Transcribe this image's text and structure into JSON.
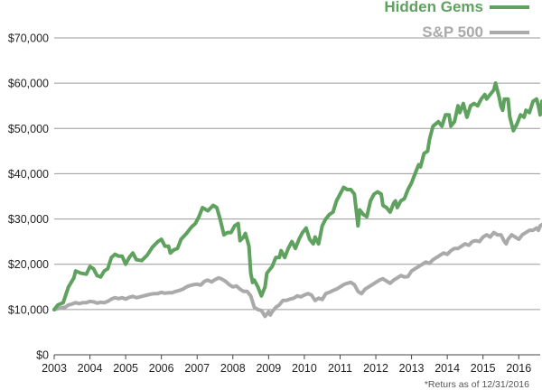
{
  "chart_data": {
    "type": "line",
    "title": "",
    "xlabel": "",
    "ylabel": "",
    "xlim": [
      2003,
      2016.6
    ],
    "ylim": [
      0,
      70000
    ],
    "grid": true,
    "legend_position": "top-right",
    "x_ticks": [
      "2003",
      "2004",
      "2005",
      "2006",
      "2007",
      "2008",
      "2009",
      "2010",
      "2011",
      "2012",
      "2013",
      "2014",
      "2015",
      "2016"
    ],
    "y_ticks": [
      "$0",
      "$10,000",
      "$20,000",
      "$30,000",
      "$40,000",
      "$50,000",
      "$60,000",
      "$70,000"
    ],
    "y_tick_values": [
      0,
      10000,
      20000,
      30000,
      40000,
      50000,
      60000,
      70000
    ],
    "series": [
      {
        "name": "Hidden Gems",
        "color": "#5fa15e",
        "points": [
          [
            2003.0,
            10000
          ],
          [
            2003.1,
            11000
          ],
          [
            2003.25,
            11500
          ],
          [
            2003.4,
            15000
          ],
          [
            2003.55,
            17000
          ],
          [
            2003.6,
            18500
          ],
          [
            2003.75,
            18000
          ],
          [
            2003.9,
            17800
          ],
          [
            2004.0,
            19500
          ],
          [
            2004.1,
            19000
          ],
          [
            2004.2,
            17500
          ],
          [
            2004.3,
            17200
          ],
          [
            2004.4,
            18500
          ],
          [
            2004.5,
            19000
          ],
          [
            2004.6,
            21500
          ],
          [
            2004.7,
            22200
          ],
          [
            2004.8,
            21800
          ],
          [
            2004.9,
            21800
          ],
          [
            2005.0,
            20000
          ],
          [
            2005.1,
            21500
          ],
          [
            2005.2,
            22500
          ],
          [
            2005.3,
            21000
          ],
          [
            2005.45,
            20800
          ],
          [
            2005.6,
            22000
          ],
          [
            2005.75,
            23800
          ],
          [
            2005.9,
            25000
          ],
          [
            2006.0,
            25500
          ],
          [
            2006.1,
            24000
          ],
          [
            2006.2,
            24000
          ],
          [
            2006.25,
            22500
          ],
          [
            2006.35,
            23200
          ],
          [
            2006.45,
            23500
          ],
          [
            2006.55,
            25500
          ],
          [
            2006.7,
            26800
          ],
          [
            2006.85,
            28300
          ],
          [
            2006.95,
            29000
          ],
          [
            2007.05,
            30500
          ],
          [
            2007.15,
            32500
          ],
          [
            2007.3,
            31800
          ],
          [
            2007.45,
            33000
          ],
          [
            2007.55,
            32500
          ],
          [
            2007.65,
            29800
          ],
          [
            2007.75,
            26500
          ],
          [
            2007.85,
            27000
          ],
          [
            2007.95,
            27000
          ],
          [
            2008.05,
            28500
          ],
          [
            2008.15,
            29000
          ],
          [
            2008.2,
            25200
          ],
          [
            2008.3,
            26000
          ],
          [
            2008.35,
            26800
          ],
          [
            2008.45,
            24000
          ],
          [
            2008.5,
            18000
          ],
          [
            2008.55,
            16000
          ],
          [
            2008.6,
            16500
          ],
          [
            2008.7,
            15000
          ],
          [
            2008.8,
            13000
          ],
          [
            2008.9,
            15000
          ],
          [
            2008.95,
            18000
          ],
          [
            2009.05,
            19000
          ],
          [
            2009.1,
            19500
          ],
          [
            2009.2,
            21500
          ],
          [
            2009.3,
            21500
          ],
          [
            2009.35,
            23000
          ],
          [
            2009.45,
            21500
          ],
          [
            2009.55,
            23500
          ],
          [
            2009.65,
            25000
          ],
          [
            2009.75,
            23500
          ],
          [
            2009.85,
            25500
          ],
          [
            2009.95,
            27000
          ],
          [
            2010.05,
            28000
          ],
          [
            2010.15,
            25500
          ],
          [
            2010.25,
            24500
          ],
          [
            2010.3,
            26000
          ],
          [
            2010.4,
            24500
          ],
          [
            2010.5,
            28500
          ],
          [
            2010.6,
            30000
          ],
          [
            2010.7,
            31000
          ],
          [
            2010.8,
            31500
          ],
          [
            2010.9,
            34000
          ],
          [
            2011.0,
            35500
          ],
          [
            2011.1,
            37000
          ],
          [
            2011.2,
            36500
          ],
          [
            2011.3,
            36500
          ],
          [
            2011.4,
            35500
          ],
          [
            2011.5,
            28500
          ],
          [
            2011.55,
            32000
          ],
          [
            2011.65,
            31000
          ],
          [
            2011.75,
            30500
          ],
          [
            2011.85,
            34000
          ],
          [
            2011.95,
            35500
          ],
          [
            2012.05,
            36000
          ],
          [
            2012.15,
            35500
          ],
          [
            2012.2,
            33000
          ],
          [
            2012.3,
            32500
          ],
          [
            2012.4,
            31500
          ],
          [
            2012.5,
            33500
          ],
          [
            2012.55,
            34000
          ],
          [
            2012.6,
            32500
          ],
          [
            2012.7,
            34000
          ],
          [
            2012.8,
            34500
          ],
          [
            2012.9,
            36500
          ],
          [
            2013.0,
            38000
          ],
          [
            2013.1,
            40000
          ],
          [
            2013.2,
            42000
          ],
          [
            2013.25,
            41500
          ],
          [
            2013.35,
            44500
          ],
          [
            2013.45,
            45000
          ],
          [
            2013.5,
            47500
          ],
          [
            2013.6,
            50500
          ],
          [
            2013.75,
            51500
          ],
          [
            2013.85,
            50500
          ],
          [
            2013.95,
            53000
          ],
          [
            2014.05,
            53000
          ],
          [
            2014.1,
            50500
          ],
          [
            2014.2,
            51500
          ],
          [
            2014.3,
            55000
          ],
          [
            2014.35,
            53500
          ],
          [
            2014.45,
            55500
          ],
          [
            2014.55,
            52500
          ],
          [
            2014.65,
            55000
          ],
          [
            2014.75,
            55500
          ],
          [
            2014.85,
            55000
          ],
          [
            2014.95,
            56500
          ],
          [
            2015.05,
            57500
          ],
          [
            2015.1,
            56500
          ],
          [
            2015.2,
            57500
          ],
          [
            2015.3,
            58500
          ],
          [
            2015.35,
            60000
          ],
          [
            2015.45,
            57000
          ],
          [
            2015.5,
            55000
          ],
          [
            2015.55,
            54000
          ],
          [
            2015.6,
            56500
          ],
          [
            2015.7,
            56500
          ],
          [
            2015.75,
            52500
          ],
          [
            2015.85,
            49500
          ],
          [
            2015.95,
            51000
          ],
          [
            2016.05,
            53000
          ],
          [
            2016.15,
            52500
          ],
          [
            2016.2,
            54000
          ],
          [
            2016.3,
            53500
          ],
          [
            2016.4,
            56000
          ],
          [
            2016.5,
            56500
          ],
          [
            2016.55,
            55000
          ],
          [
            2016.6,
            53000
          ],
          [
            2016.65,
            56000
          ],
          [
            2016.75,
            55000
          ]
        ]
      },
      {
        "name": "S&P 500",
        "color": "#aaaaaa",
        "points": [
          [
            2003.0,
            10000
          ],
          [
            2003.1,
            10200
          ],
          [
            2003.2,
            10400
          ],
          [
            2003.3,
            10500
          ],
          [
            2003.4,
            11000
          ],
          [
            2003.5,
            11200
          ],
          [
            2003.6,
            11500
          ],
          [
            2003.7,
            11300
          ],
          [
            2003.8,
            11500
          ],
          [
            2003.9,
            11500
          ],
          [
            2004.0,
            11800
          ],
          [
            2004.1,
            11700
          ],
          [
            2004.2,
            11400
          ],
          [
            2004.3,
            11600
          ],
          [
            2004.4,
            11500
          ],
          [
            2004.5,
            11800
          ],
          [
            2004.6,
            12300
          ],
          [
            2004.7,
            12600
          ],
          [
            2004.8,
            12400
          ],
          [
            2004.9,
            12600
          ],
          [
            2005.0,
            12300
          ],
          [
            2005.1,
            12700
          ],
          [
            2005.2,
            12900
          ],
          [
            2005.3,
            12600
          ],
          [
            2005.4,
            12800
          ],
          [
            2005.5,
            13000
          ],
          [
            2005.6,
            13200
          ],
          [
            2005.7,
            13400
          ],
          [
            2005.8,
            13500
          ],
          [
            2005.9,
            13500
          ],
          [
            2006.0,
            13800
          ],
          [
            2006.1,
            13600
          ],
          [
            2006.2,
            13700
          ],
          [
            2006.3,
            13700
          ],
          [
            2006.4,
            14000
          ],
          [
            2006.5,
            14200
          ],
          [
            2006.6,
            14500
          ],
          [
            2006.7,
            15000
          ],
          [
            2006.8,
            15300
          ],
          [
            2006.9,
            15500
          ],
          [
            2007.0,
            15600
          ],
          [
            2007.1,
            15400
          ],
          [
            2007.2,
            16200
          ],
          [
            2007.3,
            16500
          ],
          [
            2007.4,
            16100
          ],
          [
            2007.5,
            16600
          ],
          [
            2007.6,
            17000
          ],
          [
            2007.7,
            16700
          ],
          [
            2007.8,
            16200
          ],
          [
            2007.9,
            15500
          ],
          [
            2008.0,
            15000
          ],
          [
            2008.1,
            15200
          ],
          [
            2008.2,
            14500
          ],
          [
            2008.3,
            14000
          ],
          [
            2008.4,
            14000
          ],
          [
            2008.5,
            13000
          ],
          [
            2008.6,
            10500
          ],
          [
            2008.7,
            10000
          ],
          [
            2008.8,
            9800
          ],
          [
            2008.9,
            8500
          ],
          [
            2009.0,
            9500
          ],
          [
            2009.05,
            8800
          ],
          [
            2009.1,
            9500
          ],
          [
            2009.2,
            10500
          ],
          [
            2009.3,
            11000
          ],
          [
            2009.4,
            12000
          ],
          [
            2009.5,
            12000
          ],
          [
            2009.6,
            12300
          ],
          [
            2009.7,
            12500
          ],
          [
            2009.8,
            13000
          ],
          [
            2009.9,
            12800
          ],
          [
            2010.0,
            13200
          ],
          [
            2010.1,
            13500
          ],
          [
            2010.2,
            13200
          ],
          [
            2010.3,
            12000
          ],
          [
            2010.4,
            12500
          ],
          [
            2010.5,
            12200
          ],
          [
            2010.6,
            13500
          ],
          [
            2010.7,
            13800
          ],
          [
            2010.8,
            14200
          ],
          [
            2010.9,
            14500
          ],
          [
            2011.0,
            15000
          ],
          [
            2011.1,
            15500
          ],
          [
            2011.2,
            15800
          ],
          [
            2011.3,
            16000
          ],
          [
            2011.4,
            15500
          ],
          [
            2011.5,
            14000
          ],
          [
            2011.6,
            13500
          ],
          [
            2011.7,
            14500
          ],
          [
            2011.8,
            15000
          ],
          [
            2011.9,
            15500
          ],
          [
            2012.0,
            16000
          ],
          [
            2012.1,
            16500
          ],
          [
            2012.2,
            16800
          ],
          [
            2012.3,
            16300
          ],
          [
            2012.4,
            15800
          ],
          [
            2012.5,
            16500
          ],
          [
            2012.6,
            17000
          ],
          [
            2012.7,
            17500
          ],
          [
            2012.8,
            17200
          ],
          [
            2012.9,
            17300
          ],
          [
            2013.0,
            18500
          ],
          [
            2013.1,
            19000
          ],
          [
            2013.2,
            19500
          ],
          [
            2013.3,
            20000
          ],
          [
            2013.4,
            20500
          ],
          [
            2013.5,
            20200
          ],
          [
            2013.6,
            21000
          ],
          [
            2013.7,
            21500
          ],
          [
            2013.8,
            22000
          ],
          [
            2013.9,
            22500
          ],
          [
            2014.0,
            22200
          ],
          [
            2014.1,
            23000
          ],
          [
            2014.2,
            23500
          ],
          [
            2014.3,
            23500
          ],
          [
            2014.4,
            24000
          ],
          [
            2014.5,
            24500
          ],
          [
            2014.6,
            24200
          ],
          [
            2014.7,
            25000
          ],
          [
            2014.8,
            25200
          ],
          [
            2014.9,
            25000
          ],
          [
            2015.0,
            26000
          ],
          [
            2015.1,
            26500
          ],
          [
            2015.2,
            26000
          ],
          [
            2015.3,
            27000
          ],
          [
            2015.4,
            26500
          ],
          [
            2015.5,
            26500
          ],
          [
            2015.6,
            25000
          ],
          [
            2015.65,
            24500
          ],
          [
            2015.7,
            25500
          ],
          [
            2015.8,
            26500
          ],
          [
            2015.9,
            26000
          ],
          [
            2016.0,
            25500
          ],
          [
            2016.1,
            26500
          ],
          [
            2016.2,
            27000
          ],
          [
            2016.3,
            27500
          ],
          [
            2016.4,
            27500
          ],
          [
            2016.5,
            28000
          ],
          [
            2016.55,
            27500
          ],
          [
            2016.6,
            28500
          ],
          [
            2016.7,
            29000
          ],
          [
            2016.75,
            29500
          ]
        ]
      }
    ],
    "footnote": "*Returs as of 12/31/2016"
  }
}
